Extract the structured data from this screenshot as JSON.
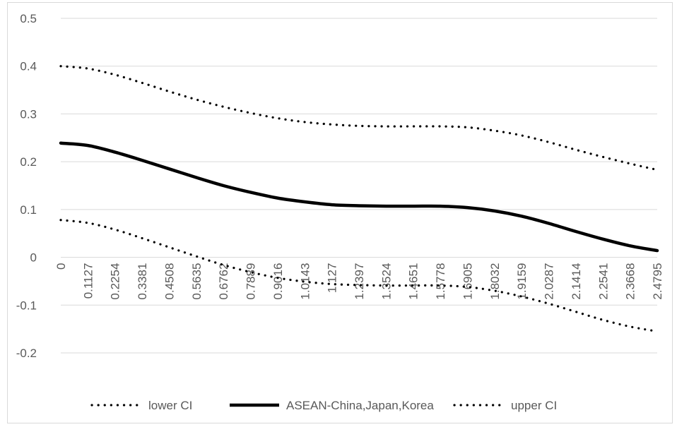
{
  "chart_data": {
    "type": "line",
    "title": "",
    "xlabel": "",
    "ylabel": "",
    "ylim": [
      -0.2,
      0.5
    ],
    "y_ticks": [
      "0.5",
      "0.4",
      "0.3",
      "0.2",
      "0.1",
      "0",
      "-0.1",
      "-0.2"
    ],
    "y_tick_values": [
      0.5,
      0.4,
      0.3,
      0.2,
      0.1,
      0,
      -0.1,
      -0.2
    ],
    "x": [
      "0",
      "0.1127",
      "0.2254",
      "0.3381",
      "0.4508",
      "0.5635",
      "0.6762",
      "0.7889",
      "0.9016",
      "1.0143",
      "1.127",
      "1.2397",
      "1.3524",
      "1.4651",
      "1.5778",
      "1.6905",
      "1.8032",
      "1.9159",
      "2.0287",
      "2.1414",
      "2.2541",
      "2.3668",
      "2.4795"
    ],
    "grid": true,
    "legend_position": "bottom",
    "series": [
      {
        "name": "lower CI",
        "style": "dotted",
        "color": "#000000",
        "values": [
          0.078,
          0.072,
          0.058,
          0.04,
          0.021,
          0.002,
          -0.016,
          -0.031,
          -0.043,
          -0.051,
          -0.056,
          -0.058,
          -0.059,
          -0.059,
          -0.059,
          -0.062,
          -0.07,
          -0.082,
          -0.097,
          -0.114,
          -0.131,
          -0.145,
          -0.155
        ]
      },
      {
        "name": "ASEAN-China,Japan,Korea",
        "style": "solid",
        "color": "#000000",
        "values": [
          0.239,
          0.234,
          0.22,
          0.203,
          0.185,
          0.167,
          0.15,
          0.136,
          0.124,
          0.116,
          0.11,
          0.108,
          0.107,
          0.107,
          0.107,
          0.104,
          0.097,
          0.086,
          0.071,
          0.054,
          0.038,
          0.024,
          0.014
        ]
      },
      {
        "name": "upper CI",
        "style": "dotted",
        "color": "#000000",
        "values": [
          0.4,
          0.395,
          0.382,
          0.365,
          0.347,
          0.33,
          0.315,
          0.302,
          0.291,
          0.283,
          0.278,
          0.275,
          0.274,
          0.274,
          0.274,
          0.272,
          0.265,
          0.255,
          0.241,
          0.225,
          0.21,
          0.196,
          0.183
        ]
      }
    ]
  }
}
